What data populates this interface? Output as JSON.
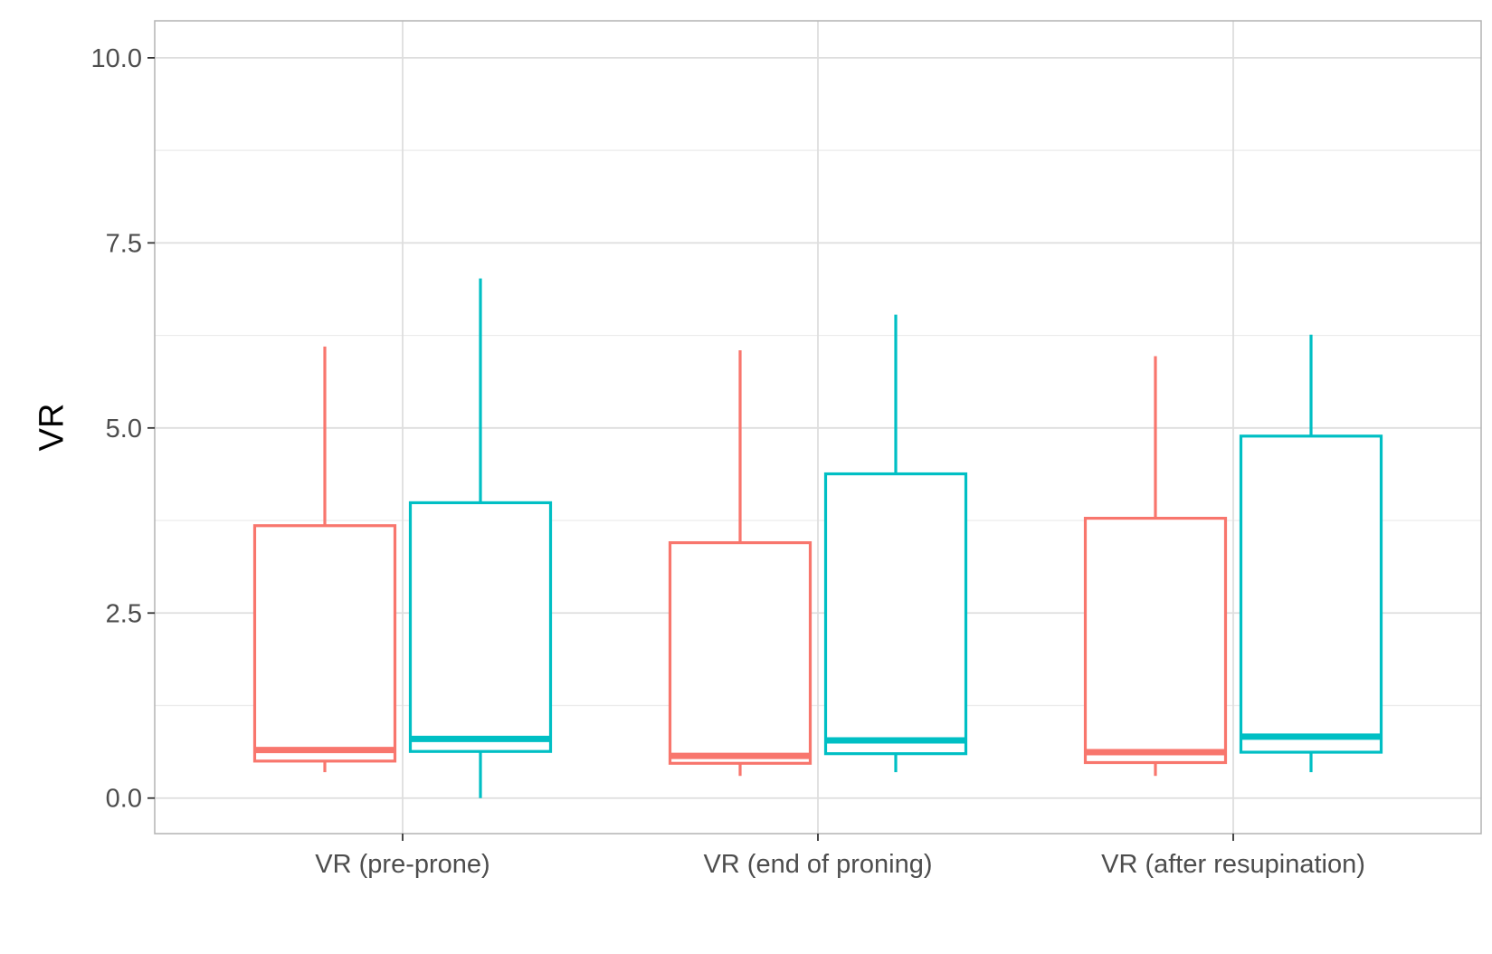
{
  "chart_data": {
    "type": "box",
    "title": "",
    "xlabel": "",
    "ylabel": "VR",
    "ylim": [
      -0.48,
      10.5
    ],
    "yticks": [
      "0.0",
      "2.5",
      "5.0",
      "7.5",
      "10.0"
    ],
    "ytick_values": [
      0,
      2.5,
      5,
      7.5,
      10
    ],
    "grid": true,
    "legend": "none",
    "categories": [
      "VR (pre-prone)",
      "VR (end of proning)",
      "VR (after resupination)"
    ],
    "series": [
      {
        "color": "#F8766D",
        "boxes": [
          {
            "min": 0.35,
            "q1": 0.5,
            "median": 0.65,
            "q3": 3.68,
            "max": 6.1
          },
          {
            "min": 0.3,
            "q1": 0.47,
            "median": 0.57,
            "q3": 3.45,
            "max": 6.05
          },
          {
            "min": 0.3,
            "q1": 0.48,
            "median": 0.62,
            "q3": 3.78,
            "max": 5.97
          }
        ]
      },
      {
        "color": "#00BFC4",
        "boxes": [
          {
            "min": 0.0,
            "q1": 0.63,
            "median": 0.8,
            "q3": 3.99,
            "max": 7.02
          },
          {
            "min": 0.35,
            "q1": 0.6,
            "median": 0.78,
            "q3": 4.38,
            "max": 6.53
          },
          {
            "min": 0.35,
            "q1": 0.62,
            "median": 0.83,
            "q3": 4.89,
            "max": 6.26
          }
        ]
      }
    ]
  }
}
